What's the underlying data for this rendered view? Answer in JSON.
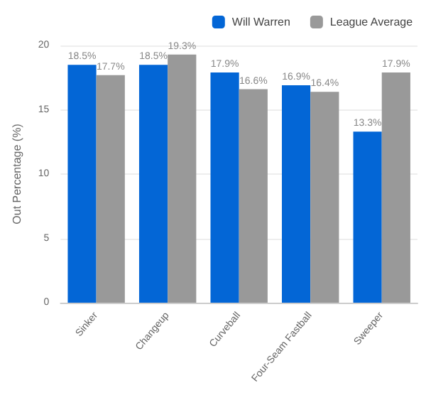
{
  "chart_data": {
    "type": "bar",
    "ylabel": "Out Percentage (%)",
    "categories": [
      "Sinker",
      "Changeup",
      "Curveball",
      "Four-Seam Fastball",
      "Sweeper"
    ],
    "series": [
      {
        "name": "Will Warren",
        "color": "#0366d6",
        "values": [
          18.5,
          18.5,
          17.9,
          16.9,
          13.3
        ],
        "value_labels": [
          "18.5%",
          "18.5%",
          "17.9%",
          "16.9%",
          "13.3%"
        ]
      },
      {
        "name": "League Average",
        "color": "#999999",
        "values": [
          17.7,
          19.3,
          16.6,
          16.4,
          17.9
        ],
        "value_labels": [
          "17.7%",
          "19.3%",
          "16.6%",
          "16.4%",
          "17.9%"
        ]
      }
    ],
    "ylim": [
      0,
      20
    ],
    "yticks": [
      0,
      5,
      10,
      15,
      20
    ],
    "grid": "y",
    "legend": "top right"
  }
}
